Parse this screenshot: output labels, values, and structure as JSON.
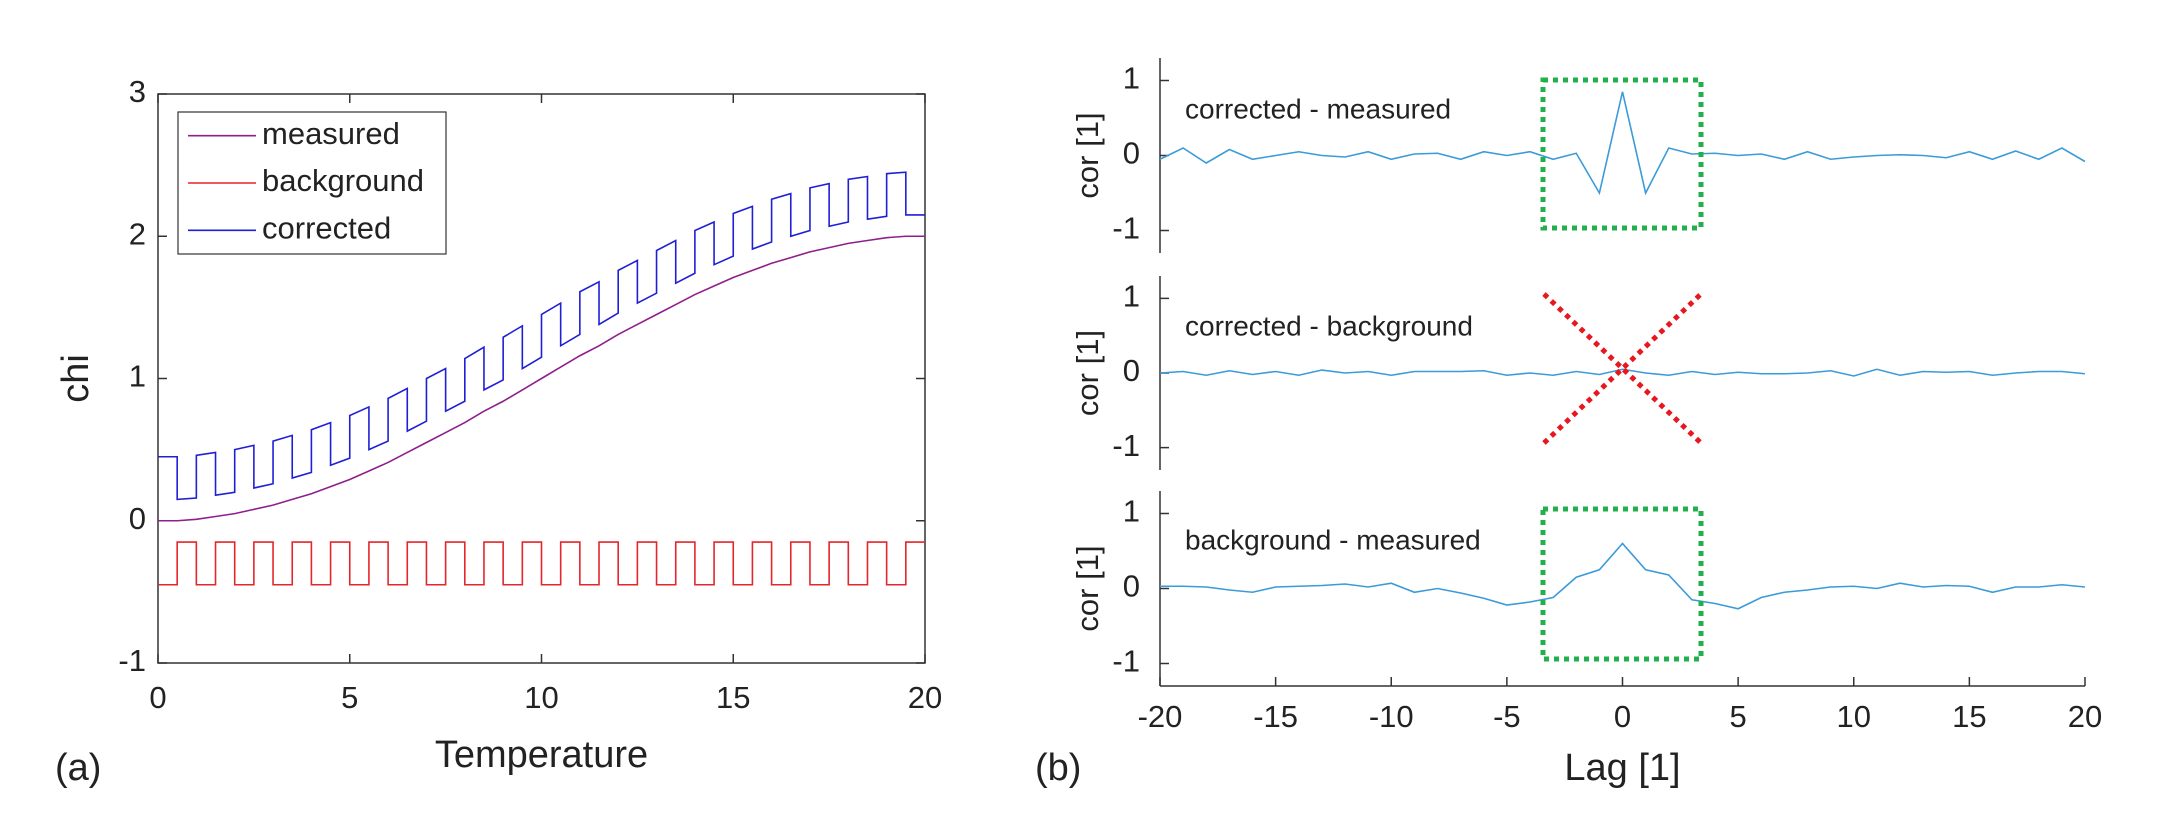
{
  "chart_data": [
    {
      "type": "line",
      "panel_label": "(a)",
      "xlabel": "Temperature",
      "ylabel": "chi",
      "xlim": [
        0,
        20
      ],
      "xticks": [
        0,
        5,
        10,
        15,
        20
      ],
      "ylim": [
        -1,
        3
      ],
      "yticks": [
        -1,
        0,
        1,
        2,
        3
      ],
      "legend": "upper left",
      "x": [
        0,
        0.5,
        0.5,
        1,
        1,
        1.5,
        1.5,
        2,
        2,
        2.5,
        2.5,
        3,
        3,
        3.5,
        3.5,
        4,
        4,
        4.5,
        4.5,
        5,
        5,
        5.5,
        5.5,
        6,
        6,
        6.5,
        6.5,
        7,
        7,
        7.5,
        7.5,
        8,
        8,
        8.5,
        8.5,
        9,
        9,
        9.5,
        9.5,
        10,
        10,
        10.5,
        10.5,
        11,
        11,
        11.5,
        11.5,
        12,
        12,
        12.5,
        12.5,
        13,
        13,
        13.5,
        13.5,
        14,
        14,
        14.5,
        14.5,
        15,
        15,
        15.5,
        15.5,
        16,
        16,
        16.5,
        16.5,
        17,
        17,
        17.5,
        17.5,
        18,
        18,
        18.5,
        18.5,
        19,
        19,
        19.5,
        19.5,
        20
      ],
      "series": [
        {
          "name": "measured",
          "color": "#8e1f8c",
          "values": [
            0,
            0,
            0,
            0.01,
            0.01,
            0.03,
            0.03,
            0.05,
            0.05,
            0.08,
            0.08,
            0.11,
            0.11,
            0.15,
            0.15,
            0.19,
            0.19,
            0.24,
            0.24,
            0.29,
            0.29,
            0.35,
            0.35,
            0.41,
            0.41,
            0.48,
            0.48,
            0.55,
            0.55,
            0.62,
            0.62,
            0.69,
            0.69,
            0.77,
            0.77,
            0.84,
            0.84,
            0.92,
            0.92,
            1.0,
            1.0,
            1.08,
            1.08,
            1.16,
            1.16,
            1.23,
            1.23,
            1.31,
            1.31,
            1.38,
            1.38,
            1.45,
            1.45,
            1.52,
            1.52,
            1.59,
            1.59,
            1.65,
            1.65,
            1.71,
            1.71,
            1.76,
            1.76,
            1.81,
            1.81,
            1.85,
            1.85,
            1.89,
            1.89,
            1.92,
            1.92,
            1.95,
            1.95,
            1.97,
            1.97,
            1.99,
            1.99,
            2.0,
            2.0,
            2.0
          ]
        },
        {
          "name": "background",
          "color": "#e3262b",
          "values": [
            -0.45,
            -0.45,
            -0.15,
            -0.15,
            -0.45,
            -0.45,
            -0.15,
            -0.15,
            -0.45,
            -0.45,
            -0.15,
            -0.15,
            -0.45,
            -0.45,
            -0.15,
            -0.15,
            -0.45,
            -0.45,
            -0.15,
            -0.15,
            -0.45,
            -0.45,
            -0.15,
            -0.15,
            -0.45,
            -0.45,
            -0.15,
            -0.15,
            -0.45,
            -0.45,
            -0.15,
            -0.15,
            -0.45,
            -0.45,
            -0.15,
            -0.15,
            -0.45,
            -0.45,
            -0.15,
            -0.15,
            -0.45,
            -0.45,
            -0.15,
            -0.15,
            -0.45,
            -0.45,
            -0.15,
            -0.15,
            -0.45,
            -0.45,
            -0.15,
            -0.15,
            -0.45,
            -0.45,
            -0.15,
            -0.15,
            -0.45,
            -0.45,
            -0.15,
            -0.15,
            -0.45,
            -0.45,
            -0.15,
            -0.15,
            -0.45,
            -0.45,
            -0.15,
            -0.15,
            -0.45,
            -0.45,
            -0.15,
            -0.15,
            -0.45,
            -0.45,
            -0.15,
            -0.15,
            -0.45,
            -0.45,
            -0.15,
            -0.15
          ]
        },
        {
          "name": "corrected",
          "color": "#1f1fd6",
          "values": [
            0.45,
            0.45,
            0.15,
            0.16,
            0.46,
            0.48,
            0.18,
            0.2,
            0.5,
            0.53,
            0.23,
            0.26,
            0.56,
            0.6,
            0.3,
            0.34,
            0.64,
            0.69,
            0.39,
            0.44,
            0.74,
            0.8,
            0.5,
            0.56,
            0.86,
            0.93,
            0.63,
            0.7,
            1.0,
            1.07,
            0.77,
            0.84,
            1.14,
            1.22,
            0.92,
            0.99,
            1.29,
            1.37,
            1.07,
            1.15,
            1.45,
            1.53,
            1.23,
            1.31,
            1.61,
            1.68,
            1.38,
            1.46,
            1.76,
            1.83,
            1.53,
            1.6,
            1.9,
            1.97,
            1.67,
            1.74,
            2.04,
            2.1,
            1.8,
            1.86,
            2.16,
            2.21,
            1.91,
            1.96,
            2.26,
            2.3,
            2.0,
            2.04,
            2.34,
            2.37,
            2.07,
            2.1,
            2.4,
            2.42,
            2.12,
            2.14,
            2.44,
            2.45,
            2.15,
            2.15
          ]
        }
      ]
    },
    {
      "type": "line",
      "panel_label": "(b)",
      "annotation": "corrected - measured",
      "ylabel": "cor [1]",
      "xlim": [
        -20,
        20
      ],
      "ylim": [
        -1.3,
        1.3
      ],
      "yticks": [
        -1,
        0,
        1
      ],
      "x": [
        -20,
        -19,
        -18,
        -17,
        -16,
        -15,
        -14,
        -13,
        -12,
        -11,
        -10,
        -9,
        -8,
        -7,
        -6,
        -5,
        -4,
        -3,
        -2,
        -1,
        0,
        1,
        2,
        3,
        4,
        5,
        6,
        7,
        8,
        9,
        10,
        11,
        12,
        13,
        14,
        15,
        16,
        17,
        18,
        19,
        20
      ],
      "series": [
        {
          "color": "#3b9bd8",
          "values": [
            -0.05,
            0.1,
            -0.1,
            0.08,
            -0.05,
            0,
            0.05,
            0,
            -0.02,
            0.05,
            -0.05,
            0.02,
            0.03,
            -0.05,
            0.05,
            0,
            0.05,
            -0.05,
            0.03,
            -0.5,
            0.85,
            -0.5,
            0.1,
            0.02,
            0.03,
            0,
            0.02,
            -0.05,
            0.05,
            -0.05,
            -0.02,
            0,
            0.01,
            0,
            -0.03,
            0.05,
            -0.05,
            0.06,
            -0.05,
            0.1,
            -0.08
          ]
        }
      ]
    },
    {
      "type": "line",
      "annotation": "corrected - background",
      "ylabel": "cor [1]",
      "xlim": [
        -20,
        20
      ],
      "ylim": [
        -1.3,
        1.3
      ],
      "yticks": [
        -1,
        0,
        1
      ],
      "x": [
        -20,
        -19,
        -18,
        -17,
        -16,
        -15,
        -14,
        -13,
        -12,
        -11,
        -10,
        -9,
        -8,
        -7,
        -6,
        -5,
        -4,
        -3,
        -2,
        -1,
        0,
        1,
        2,
        3,
        4,
        5,
        6,
        7,
        8,
        9,
        10,
        11,
        12,
        13,
        14,
        15,
        16,
        17,
        18,
        19,
        20
      ],
      "series": [
        {
          "color": "#3b9bd8",
          "values": [
            0,
            0.02,
            -0.03,
            0.03,
            -0.02,
            0.02,
            -0.03,
            0.04,
            0,
            0.02,
            -0.03,
            0.02,
            0.02,
            0.02,
            0.03,
            -0.03,
            0,
            -0.03,
            0.02,
            -0.02,
            0.05,
            0,
            -0.03,
            0.02,
            -0.02,
            0.01,
            -0.01,
            -0.01,
            0,
            0.03,
            -0.04,
            0.05,
            -0.03,
            0.02,
            0.01,
            0.02,
            -0.03,
            0,
            0.02,
            0.02,
            -0.01
          ]
        }
      ]
    },
    {
      "type": "line",
      "annotation": "background - measured",
      "ylabel": "cor [1]",
      "xlabel": "Lag [1]",
      "xlim": [
        -20,
        20
      ],
      "xticks": [
        -20,
        -15,
        -10,
        -5,
        0,
        5,
        10,
        15,
        20
      ],
      "ylim": [
        -1.3,
        1.3
      ],
      "yticks": [
        -1,
        0,
        1
      ],
      "x": [
        -20,
        -19,
        -18,
        -17,
        -16,
        -15,
        -14,
        -13,
        -12,
        -11,
        -10,
        -9,
        -8,
        -7,
        -6,
        -5,
        -4,
        -3,
        -2,
        -1,
        0,
        1,
        2,
        3,
        4,
        5,
        6,
        7,
        8,
        9,
        10,
        11,
        12,
        13,
        14,
        15,
        16,
        17,
        18,
        19,
        20
      ],
      "series": [
        {
          "color": "#3b9bd8",
          "values": [
            0.03,
            0.03,
            0.02,
            -0.02,
            -0.05,
            0.02,
            0.03,
            0.04,
            0.06,
            0.02,
            0.07,
            -0.05,
            0,
            -0.06,
            -0.13,
            -0.22,
            -0.18,
            -0.12,
            0.15,
            0.25,
            0.6,
            0.25,
            0.18,
            -0.15,
            -0.2,
            -0.27,
            -0.12,
            -0.05,
            -0.02,
            0.02,
            0.03,
            0,
            0.07,
            0.02,
            0.04,
            0.03,
            -0.05,
            0.02,
            0.02,
            0.05,
            0.02
          ]
        }
      ]
    }
  ]
}
